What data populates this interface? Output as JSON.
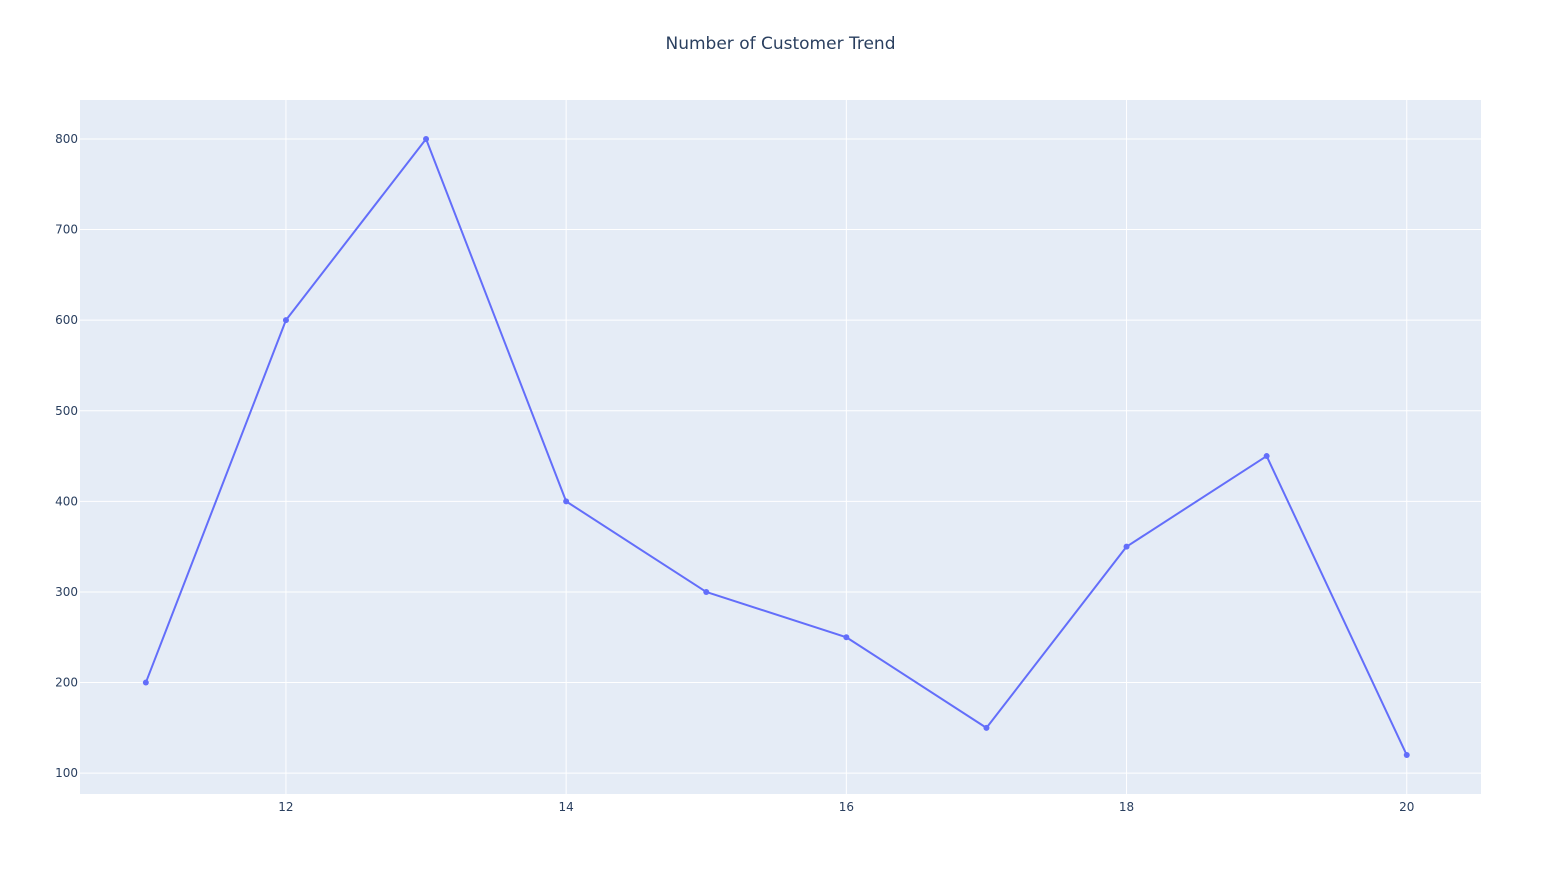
{
  "chart_data": {
    "type": "line",
    "title": "Number of Customer Trend",
    "xlabel": "",
    "ylabel": "",
    "x": [
      11,
      12,
      13,
      14,
      15,
      16,
      17,
      18,
      19,
      20
    ],
    "series": [
      {
        "values": [
          200,
          600,
          800,
          400,
          300,
          250,
          150,
          350,
          450,
          120
        ]
      }
    ],
    "xlim": [
      10.53,
      20.53
    ],
    "ylim": [
      77,
      843
    ],
    "x_ticks": [
      12,
      14,
      16,
      18,
      20
    ],
    "y_ticks": [
      100,
      200,
      300,
      400,
      500,
      600,
      700,
      800
    ],
    "grid": true,
    "legend": "none",
    "colors": {
      "line": "#636efa",
      "plot_background": "#e5ecf6",
      "grid": "#ffffff",
      "text": "#2a3f5f",
      "page_background": "#ffffff"
    }
  }
}
